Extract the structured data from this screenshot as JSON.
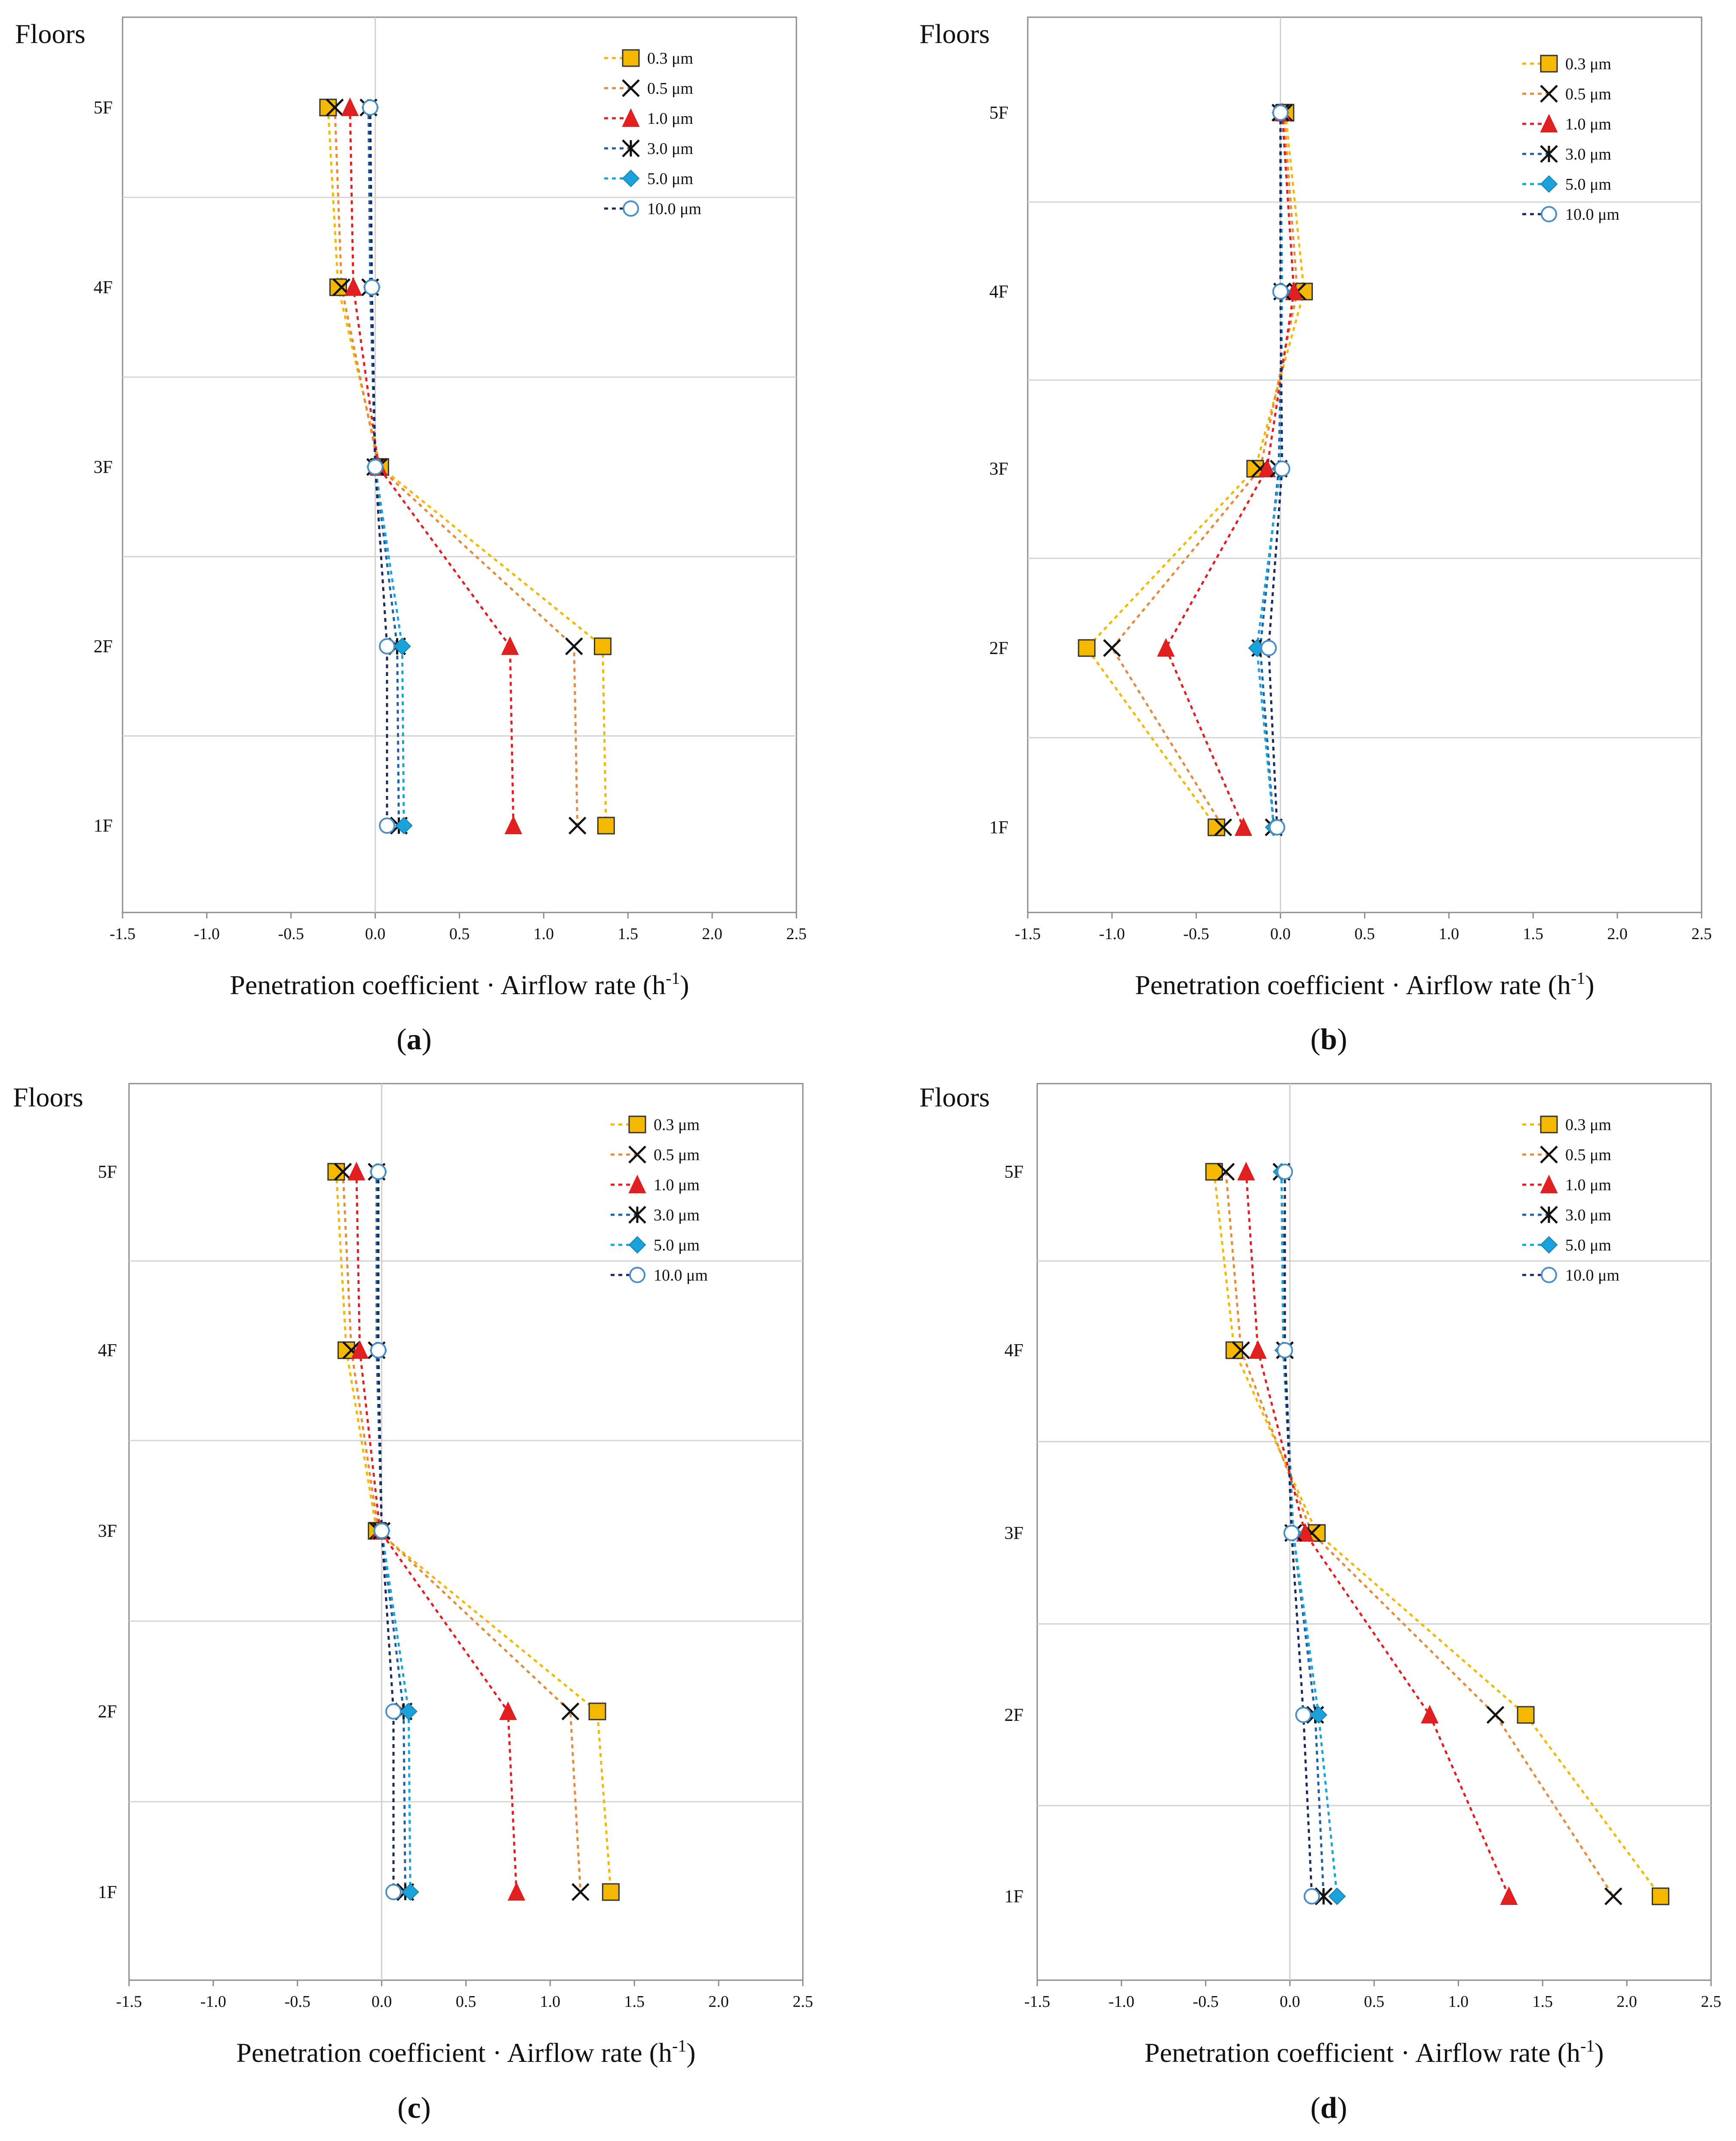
{
  "figure_labels": {
    "y_title": "Floors",
    "x_title_main": "Penetration coefficient · Airflow rate (h",
    "x_title_sup": "-1",
    "x_title_close": ")"
  },
  "chart_data": [
    {
      "type": "line",
      "caption": "a",
      "xlim": [
        -1.5,
        2.5
      ],
      "xticks": [
        "-1.5",
        "-1.0",
        "-0.5",
        "0.0",
        "0.5",
        "1.0",
        "1.5",
        "2.0",
        "2.5"
      ],
      "categories": [
        "5F",
        "4F",
        "3F",
        "2F",
        "1F"
      ],
      "series": [
        {
          "name": "0.3 μm",
          "color": "#F5B800",
          "marker": "square",
          "values": [
            -0.28,
            -0.22,
            0.03,
            1.35,
            1.37
          ]
        },
        {
          "name": "0.5 μm",
          "color": "#E88A3C",
          "marker": "x",
          "values": [
            -0.24,
            -0.2,
            0.02,
            1.18,
            1.2
          ]
        },
        {
          "name": "1.0 μm",
          "color": "#E02020",
          "marker": "triangle",
          "values": [
            -0.15,
            -0.13,
            0.02,
            0.8,
            0.82
          ]
        },
        {
          "name": "3.0 μm",
          "color": "#1F5FA8",
          "marker": "star",
          "values": [
            -0.04,
            -0.03,
            0.0,
            0.13,
            0.14
          ]
        },
        {
          "name": "5.0 μm",
          "color": "#1AA3DB",
          "marker": "diamond",
          "values": [
            -0.03,
            -0.02,
            0.0,
            0.16,
            0.17
          ]
        },
        {
          "name": "10.0 μm",
          "color": "#1B2A5C",
          "marker": "circle",
          "values": [
            -0.03,
            -0.02,
            0.0,
            0.07,
            0.07
          ]
        }
      ]
    },
    {
      "type": "line",
      "caption": "b",
      "xlim": [
        -1.5,
        2.5
      ],
      "xticks": [
        "-1.5",
        "-1.0",
        "-0.5",
        "0.0",
        "0.5",
        "1.0",
        "1.5",
        "2.0",
        "2.5"
      ],
      "categories": [
        "5F",
        "4F",
        "3F",
        "2F",
        "1F"
      ],
      "series": [
        {
          "name": "0.3 μm",
          "color": "#F5B800",
          "marker": "square",
          "values": [
            0.03,
            0.14,
            -0.15,
            -1.15,
            -0.38
          ]
        },
        {
          "name": "0.5 μm",
          "color": "#E88A3C",
          "marker": "x",
          "values": [
            0.02,
            0.1,
            -0.12,
            -1.0,
            -0.34
          ]
        },
        {
          "name": "1.0 μm",
          "color": "#E02020",
          "marker": "triangle",
          "values": [
            0.01,
            0.08,
            -0.08,
            -0.68,
            -0.22
          ]
        },
        {
          "name": "3.0 μm",
          "color": "#1F5FA8",
          "marker": "star",
          "values": [
            0.0,
            0.01,
            -0.01,
            -0.12,
            -0.04
          ]
        },
        {
          "name": "5.0 μm",
          "color": "#1AA3DB",
          "marker": "diamond",
          "values": [
            0.0,
            0.01,
            0.0,
            -0.14,
            -0.04
          ]
        },
        {
          "name": "10.0 μm",
          "color": "#1B2A5C",
          "marker": "circle",
          "values": [
            0.0,
            0.0,
            0.01,
            -0.07,
            -0.02
          ]
        }
      ]
    },
    {
      "type": "line",
      "caption": "c",
      "xlim": [
        -1.5,
        2.5
      ],
      "xticks": [
        "-1.5",
        "-1.0",
        "-0.5",
        "0.0",
        "0.5",
        "1.0",
        "1.5",
        "2.0",
        "2.5"
      ],
      "categories": [
        "5F",
        "4F",
        "3F",
        "2F",
        "1F"
      ],
      "series": [
        {
          "name": "0.3 μm",
          "color": "#F5B800",
          "marker": "square",
          "values": [
            -0.27,
            -0.21,
            -0.03,
            1.28,
            1.36
          ]
        },
        {
          "name": "0.5 μm",
          "color": "#E88A3C",
          "marker": "x",
          "values": [
            -0.23,
            -0.18,
            -0.02,
            1.12,
            1.18
          ]
        },
        {
          "name": "1.0 μm",
          "color": "#E02020",
          "marker": "triangle",
          "values": [
            -0.15,
            -0.13,
            -0.01,
            0.75,
            0.8
          ]
        },
        {
          "name": "3.0 μm",
          "color": "#1F5FA8",
          "marker": "star",
          "values": [
            -0.03,
            -0.03,
            0.0,
            0.13,
            0.14
          ]
        },
        {
          "name": "5.0 μm",
          "color": "#1AA3DB",
          "marker": "diamond",
          "values": [
            -0.02,
            -0.02,
            0.0,
            0.16,
            0.17
          ]
        },
        {
          "name": "10.0 μm",
          "color": "#1B2A5C",
          "marker": "circle",
          "values": [
            -0.02,
            -0.02,
            0.0,
            0.07,
            0.07
          ]
        }
      ]
    },
    {
      "type": "line",
      "caption": "d",
      "xlim": [
        -1.5,
        2.5
      ],
      "xticks": [
        "-1.5",
        "-1.0",
        "-0.5",
        "0.0",
        "0.5",
        "1.0",
        "1.5",
        "2.0",
        "2.5"
      ],
      "categories": [
        "5F",
        "4F",
        "3F",
        "2F",
        "1F"
      ],
      "series": [
        {
          "name": "0.3 μm",
          "color": "#F5B800",
          "marker": "square",
          "values": [
            -0.45,
            -0.33,
            0.16,
            1.4,
            2.2
          ]
        },
        {
          "name": "0.5 μm",
          "color": "#E88A3C",
          "marker": "x",
          "values": [
            -0.38,
            -0.29,
            0.13,
            1.22,
            1.92
          ]
        },
        {
          "name": "1.0 μm",
          "color": "#E02020",
          "marker": "triangle",
          "values": [
            -0.26,
            -0.19,
            0.09,
            0.83,
            1.3
          ]
        },
        {
          "name": "3.0 μm",
          "color": "#1F5FA8",
          "marker": "star",
          "values": [
            -0.05,
            -0.03,
            0.02,
            0.15,
            0.2
          ]
        },
        {
          "name": "5.0 μm",
          "color": "#1AA3DB",
          "marker": "diamond",
          "values": [
            -0.05,
            -0.04,
            0.02,
            0.17,
            0.28
          ]
        },
        {
          "name": "10.0 μm",
          "color": "#1B2A5C",
          "marker": "circle",
          "values": [
            -0.03,
            -0.03,
            0.01,
            0.08,
            0.13
          ]
        }
      ]
    }
  ]
}
